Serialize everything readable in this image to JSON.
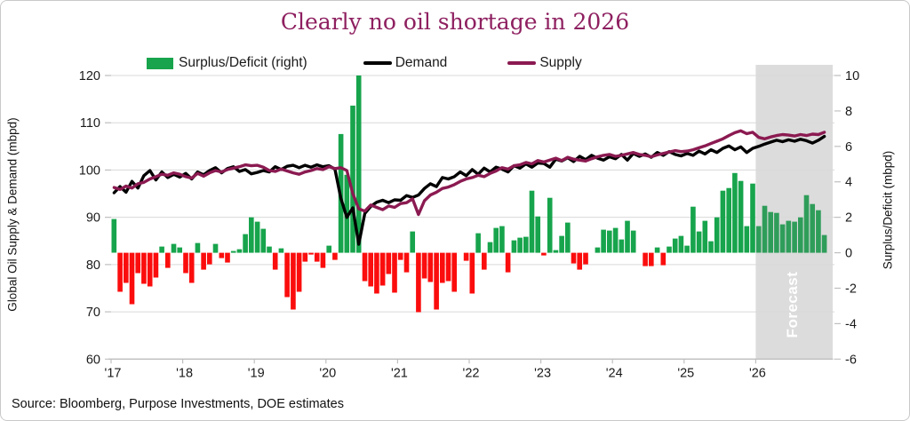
{
  "title": "Clearly no oil shortage in 2026",
  "source": "Source: Bloomberg, Purpose Investments, DOE estimates",
  "legend": {
    "surplus_label": "Surplus/Deficit (right)",
    "demand_label": "Demand",
    "supply_label": "Supply"
  },
  "colors": {
    "title": "#8e2060",
    "bar_positive": "#17a44c",
    "bar_positive_forecast": "#2f9d5a",
    "bar_negative": "#fb0d0d",
    "demand_line": "#000000",
    "supply_line": "#8b1a51",
    "forecast_band": "#dcdcdc",
    "grid": "#d9d9d9",
    "axis": "#bfbfbf",
    "tick_text": "#1a1a1a"
  },
  "chart_data": {
    "type": "bar+line",
    "title": "Clearly no oil shortage in 2026",
    "months_start": "2017-01",
    "months_end": "2026-12",
    "x_tick_labels": [
      "'17",
      "'18",
      "'19",
      "'20",
      "'21",
      "'22",
      "'23",
      "'24",
      "'25",
      "'26"
    ],
    "left_axis": {
      "label": "Global Oil Supply & Demand (mbpd)",
      "min": 60,
      "max": 120,
      "ticks": [
        120,
        110,
        100,
        90,
        80,
        70,
        60
      ]
    },
    "right_axis": {
      "label": "Surplus/Deficit (mbpd)",
      "min": -6,
      "max": 10,
      "ticks": [
        10,
        8,
        6,
        4,
        2,
        0,
        -2,
        -4,
        -6
      ]
    },
    "forecast": {
      "label": "Forecast",
      "start_index": 108
    },
    "series": [
      {
        "name": "Surplus/Deficit (right)",
        "type": "bar",
        "axis": "right",
        "values": [
          1.9,
          -2.2,
          -1.7,
          -2.9,
          -1.15,
          -1.75,
          -1.9,
          -1.4,
          0.35,
          -0.85,
          0.5,
          0.3,
          -1.15,
          -1.7,
          0.55,
          -0.95,
          -0.65,
          0.5,
          -0.3,
          -0.55,
          0.1,
          0.2,
          1.05,
          2.0,
          1.75,
          1.35,
          0.35,
          -0.95,
          0.25,
          -2.5,
          -3.2,
          -2.2,
          -0.5,
          -0.1,
          -0.5,
          -0.85,
          0.4,
          -0.4,
          6.7,
          4.4,
          8.3,
          10.0,
          -1.6,
          -1.9,
          -2.3,
          -1.85,
          -1.2,
          -2.25,
          -0.4,
          -1.1,
          1.2,
          -3.35,
          -1.45,
          -1.65,
          -3.2,
          -1.7,
          -1.6,
          -2.2,
          0.0,
          -0.45,
          -2.3,
          1.1,
          -0.95,
          0.6,
          1.4,
          1.5,
          -1.1,
          0.7,
          0.85,
          0.9,
          3.5,
          2.05,
          -0.15,
          3.1,
          0.15,
          0.95,
          1.7,
          -0.6,
          -0.95,
          -0.65,
          0.0,
          0.3,
          1.3,
          1.25,
          1.4,
          0.75,
          1.8,
          1.25,
          0.0,
          -0.75,
          -0.75,
          0.3,
          -0.7,
          0.35,
          0.8,
          0.95,
          0.4,
          2.6,
          1.2,
          1.8,
          0.65,
          2.0,
          3.5,
          3.65,
          4.5,
          4.05,
          1.5,
          3.9,
          1.5,
          2.65,
          2.3,
          2.25,
          1.6,
          1.8,
          1.75,
          2.0,
          3.25,
          2.75,
          2.4,
          1.0
        ]
      },
      {
        "name": "Demand",
        "type": "line",
        "axis": "left",
        "values": [
          95.2,
          96.5,
          95.3,
          97.6,
          96.2,
          98.8,
          99.9,
          97.9,
          99.6,
          98.4,
          99.1,
          98.5,
          99.3,
          98.1,
          99.6,
          99.0,
          99.9,
          100.5,
          99.4,
          100.3,
          100.7,
          99.7,
          100.1,
          99.2,
          99.5,
          99.9,
          99.6,
          100.7,
          100.1,
          100.8,
          101.0,
          100.5,
          101.0,
          100.6,
          101.1,
          100.7,
          100.9,
          100.2,
          94.0,
          90.0,
          92.0,
          84.3,
          90.8,
          92.3,
          93.2,
          93.6,
          93.1,
          93.7,
          93.6,
          94.6,
          94.2,
          94.7,
          96.1,
          97.1,
          96.5,
          98.4,
          98.1,
          98.6,
          99.6,
          98.8,
          100.1,
          99.1,
          100.4,
          99.6,
          100.6,
          100.2,
          99.6,
          100.9,
          100.4,
          101.3,
          100.6,
          101.5,
          101.4,
          100.6,
          102.3,
          101.9,
          102.6,
          101.8,
          102.9,
          102.2,
          103.1,
          102.5,
          102.1,
          102.8,
          102.4,
          103.3,
          102.1,
          103.5,
          102.9,
          103.4,
          102.7,
          103.7,
          103.1,
          103.9,
          103.3,
          103.0,
          103.5,
          103.1,
          104.0,
          103.4,
          104.3,
          103.7,
          104.6,
          105.1,
          104.3,
          104.9,
          103.7,
          104.6,
          105.0,
          105.5,
          105.9,
          106.3,
          106.0,
          106.4,
          106.1,
          106.5,
          106.2,
          105.7,
          106.3,
          107.1
        ]
      },
      {
        "name": "Supply",
        "type": "line",
        "axis": "left",
        "values": [
          96.3,
          95.9,
          96.6,
          96.2,
          97.1,
          97.4,
          98.1,
          98.6,
          99.1,
          98.9,
          99.4,
          99.1,
          98.6,
          98.3,
          99.3,
          98.7,
          99.4,
          99.9,
          99.6,
          100.1,
          100.4,
          100.7,
          101.1,
          100.9,
          101.0,
          100.6,
          99.9,
          99.7,
          100.2,
          99.8,
          99.4,
          99.1,
          99.6,
          99.9,
          100.3,
          100.1,
          100.7,
          100.3,
          100.5,
          99.9,
          95.0,
          91.8,
          91.3,
          92.6,
          92.1,
          91.6,
          92.4,
          92.1,
          92.9,
          93.1,
          93.9,
          90.6,
          93.5,
          94.7,
          95.3,
          96.1,
          96.4,
          96.9,
          97.6,
          98.1,
          98.4,
          98.9,
          98.6,
          99.3,
          99.8,
          100.5,
          100.2,
          100.9,
          101.1,
          101.6,
          101.3,
          102.0,
          101.7,
          102.1,
          102.5,
          102.0,
          102.7,
          102.3,
          102.1,
          101.9,
          102.4,
          102.8,
          103.1,
          103.3,
          102.9,
          103.1,
          103.4,
          103.7,
          103.3,
          103.1,
          102.8,
          103.2,
          103.5,
          103.8,
          104.1,
          103.9,
          104.0,
          104.3,
          104.7,
          105.1,
          105.6,
          106.1,
          106.6,
          107.3,
          107.9,
          108.3,
          107.7,
          108.0,
          106.9,
          106.6,
          107.0,
          107.3,
          107.5,
          107.4,
          107.2,
          107.5,
          107.3,
          107.6,
          107.5,
          108.0
        ]
      }
    ]
  }
}
